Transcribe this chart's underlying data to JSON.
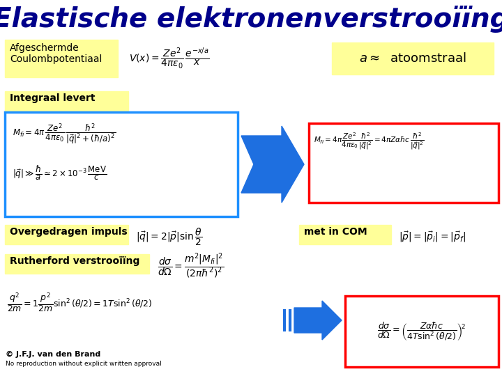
{
  "title": "Elastische elektronenverstrooïïng",
  "title_color": "#00008B",
  "title_fontsize": 28,
  "bg_color": "#FFFFFF",
  "yellow_bg": "#FFFF99",
  "blue_border": "#1E90FF",
  "red_border": "#FF0000",
  "arrow_blue": "#1E6FE0",
  "label1": "Afgeschermde\nCoulombpotentiaal",
  "label1b": "a ≈ atoomstraal",
  "label2": "Integraal levert",
  "label3": "Overgedragen impuls",
  "label3b": "met in COM",
  "label4": "Rutherford verstrooïïng",
  "copyright": "© J.F.J. van den Brand",
  "copyright2": "No reproduction without explicit written approval"
}
